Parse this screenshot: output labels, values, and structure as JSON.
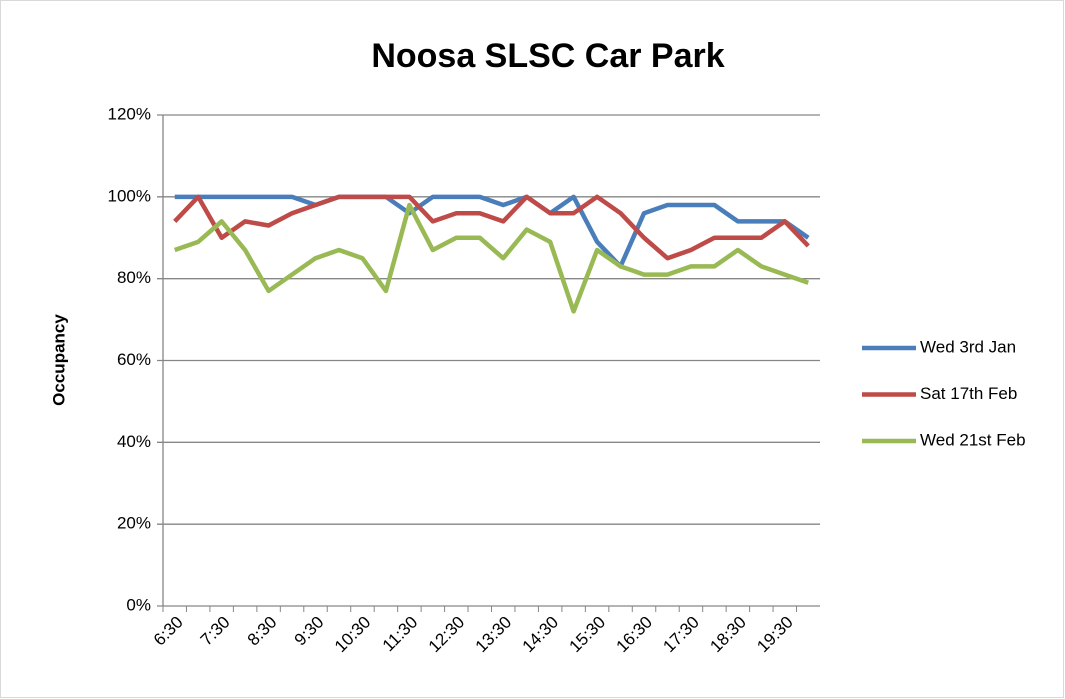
{
  "chart_data": {
    "type": "line",
    "title": "Noosa SLSC Car Park",
    "y_label": "Occupancy",
    "categories": [
      "6:30",
      null,
      "7:30",
      null,
      "8:30",
      null,
      "9:30",
      null,
      "10:30",
      null,
      "11:30",
      null,
      "12:30",
      null,
      "13:30",
      null,
      "14:30",
      null,
      "15:30",
      null,
      "16:30",
      null,
      "17:30",
      null,
      "18:30",
      null,
      "19:30",
      null
    ],
    "series": [
      {
        "name": "Wed 3rd Jan",
        "color": "#4a7ebb",
        "values": [
          100,
          100,
          100,
          100,
          100,
          100,
          98,
          100,
          100,
          100,
          96,
          100,
          100,
          100,
          98,
          100,
          96,
          100,
          89,
          83,
          96,
          98,
          98,
          98,
          94,
          94,
          94,
          90
        ]
      },
      {
        "name": "Sat 17th Feb",
        "color": "#be4b48",
        "values": [
          94,
          100,
          90,
          94,
          93,
          96,
          98,
          100,
          100,
          100,
          100,
          94,
          96,
          96,
          94,
          100,
          96,
          96,
          100,
          96,
          90,
          85,
          87,
          90,
          90,
          90,
          94,
          88
        ]
      },
      {
        "name": "Wed 21st Feb",
        "color": "#98b954",
        "values": [
          87,
          89,
          94,
          87,
          77,
          81,
          85,
          87,
          85,
          77,
          98,
          87,
          90,
          90,
          85,
          92,
          89,
          72,
          87,
          83,
          81,
          81,
          83,
          83,
          87,
          83,
          81,
          79
        ]
      }
    ],
    "ylim": [
      0,
      120
    ],
    "yticks": [
      {
        "value": 0,
        "label": "0%"
      },
      {
        "value": 20,
        "label": "20%"
      },
      {
        "value": 40,
        "label": "40%"
      },
      {
        "value": 60,
        "label": "60%"
      },
      {
        "value": 80,
        "label": "80%"
      },
      {
        "value": 100,
        "label": "100%"
      },
      {
        "value": 120,
        "label": "120%"
      }
    ],
    "grid": true,
    "legend": "right"
  }
}
